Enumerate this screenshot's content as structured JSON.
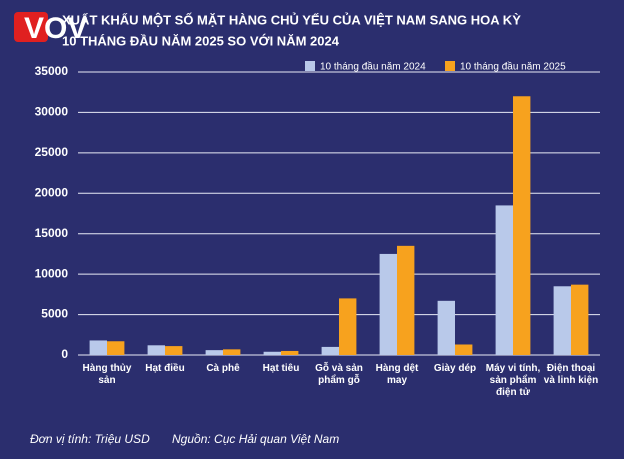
{
  "chart_data": {
    "type": "bar",
    "logo": "VOV",
    "title": "XUẤT KHẨU MỘT SỐ MẶT HÀNG CHỦ YẾU CỦA VIỆT NAM SANG HOA KỲ",
    "subtitle": "10 THÁNG ĐẦU NĂM 2025 SO VỚI NĂM 2024",
    "categories": [
      "Hàng thủy sản",
      "Hạt điều",
      "Cà phê",
      "Hạt tiêu",
      "Gỗ và sản phẩm gỗ",
      "Hàng dệt may",
      "Giày dép",
      "Máy vi tính, sản phẩm điện tử",
      "Điện thoại và linh kiện"
    ],
    "series": [
      {
        "name": "10 tháng đầu năm 2024",
        "color": "#b9c9ea",
        "values": [
          1800,
          1200,
          600,
          400,
          1000,
          12500,
          6700,
          18500,
          8500
        ]
      },
      {
        "name": "10 tháng đầu năm 2025",
        "color": "#f7a21e",
        "values": [
          1700,
          1100,
          700,
          500,
          7000,
          13500,
          1300,
          32000,
          8700
        ]
      }
    ],
    "ylim": [
      0,
      35000
    ],
    "yticks": [
      0,
      5000,
      10000,
      15000,
      20000,
      25000,
      30000,
      35000
    ],
    "grid": true,
    "legend": "top-right",
    "unit_note": "Đơn vị tính: Triệu USD",
    "source": "Nguồn: Cục Hải quan Việt Nam"
  }
}
